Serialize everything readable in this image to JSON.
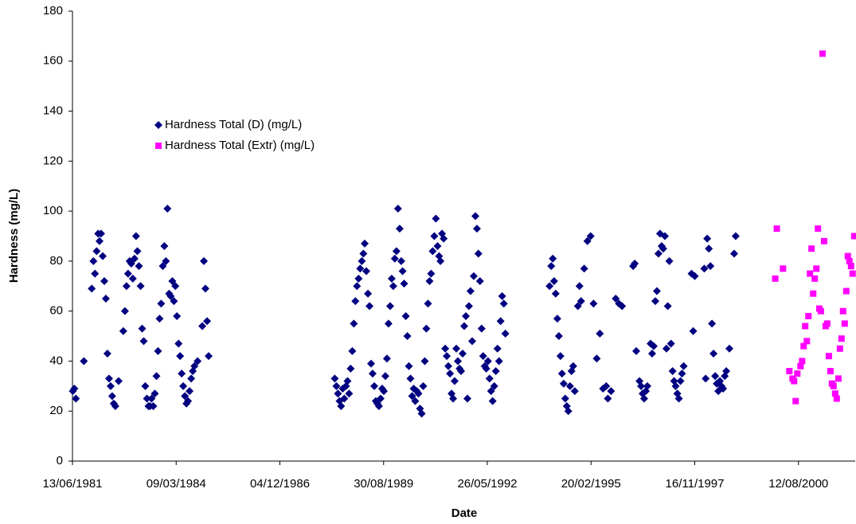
{
  "chart_data": {
    "type": "scatter",
    "x_label": "Date",
    "y_label": "Hardness (mg/L)",
    "xlim": [
      "13/06/1981",
      "10/02/2002"
    ],
    "xticks": [
      "13/06/1981",
      "09/03/1984",
      "04/12/1986",
      "30/08/1989",
      "26/05/1992",
      "20/02/1995",
      "16/11/1997",
      "12/08/2000"
    ],
    "ylim": [
      0,
      180
    ],
    "yticks": [
      0,
      20,
      40,
      60,
      80,
      100,
      120,
      140,
      160,
      180
    ],
    "grid": false,
    "legend": "upper left",
    "series": [
      {
        "name": "Hardness Total (D) (mg/L)",
        "color": "#000080",
        "marker": "diamond",
        "x": [
          "16/06/1981",
          "01/07/1981",
          "16/07/1981",
          "01/10/1981",
          "16/12/1981",
          "01/01/1982",
          "16/01/1982",
          "01/02/1982",
          "16/02/1982",
          "01/03/1982",
          "16/03/1982",
          "01/04/1982",
          "16/04/1982",
          "01/05/1982",
          "16/05/1982",
          "01/06/1982",
          "16/06/1982",
          "01/07/1982",
          "16/07/1982",
          "01/08/1982",
          "01/09/1982",
          "16/10/1982",
          "01/11/1982",
          "16/11/1982",
          "01/12/1982",
          "16/12/1982",
          "01/01/1983",
          "16/01/1983",
          "01/02/1983",
          "16/02/1983",
          "01/03/1983",
          "16/03/1983",
          "01/04/1983",
          "16/04/1983",
          "01/05/1983",
          "16/05/1983",
          "01/06/1983",
          "16/06/1983",
          "01/07/1983",
          "16/07/1983",
          "01/08/1983",
          "16/08/1983",
          "01/09/1983",
          "16/09/1983",
          "01/10/1983",
          "16/10/1983",
          "01/11/1983",
          "16/11/1983",
          "01/12/1983",
          "16/12/1983",
          "01/01/1984",
          "16/01/1984",
          "01/02/1984",
          "16/02/1984",
          "01/03/1984",
          "16/03/1984",
          "01/04/1984",
          "16/04/1984",
          "01/05/1984",
          "16/05/1984",
          "01/06/1984",
          "16/06/1984",
          "01/07/1984",
          "16/07/1984",
          "01/08/1984",
          "16/08/1984",
          "01/09/1984",
          "01/10/1984",
          "16/11/1984",
          "01/12/1984",
          "16/12/1984",
          "01/01/1985",
          "16/01/1985",
          "16/05/1988",
          "01/06/1988",
          "16/06/1988",
          "01/07/1988",
          "16/07/1988",
          "01/08/1988",
          "16/08/1988",
          "01/09/1988",
          "16/09/1988",
          "01/10/1988",
          "16/10/1988",
          "01/11/1988",
          "16/11/1988",
          "01/12/1988",
          "16/12/1988",
          "01/01/1989",
          "16/01/1989",
          "01/02/1989",
          "16/02/1989",
          "01/03/1989",
          "16/03/1989",
          "01/04/1989",
          "16/04/1989",
          "01/05/1989",
          "16/05/1989",
          "01/06/1989",
          "16/06/1989",
          "01/07/1989",
          "16/07/1989",
          "01/08/1989",
          "16/08/1989",
          "01/09/1989",
          "16/09/1989",
          "01/10/1989",
          "16/10/1989",
          "01/11/1989",
          "16/11/1989",
          "01/12/1989",
          "16/12/1989",
          "01/01/1990",
          "16/01/1990",
          "01/02/1990",
          "16/02/1990",
          "01/03/1990",
          "16/03/1990",
          "01/04/1990",
          "16/04/1990",
          "01/05/1990",
          "16/05/1990",
          "01/06/1990",
          "16/06/1990",
          "01/07/1990",
          "16/07/1990",
          "01/08/1990",
          "16/08/1990",
          "01/09/1990",
          "16/09/1990",
          "01/10/1990",
          "16/10/1990",
          "01/11/1990",
          "16/11/1990",
          "01/12/1990",
          "16/12/1990",
          "01/01/1991",
          "16/01/1991",
          "01/02/1991",
          "16/02/1991",
          "01/03/1991",
          "16/03/1991",
          "01/04/1991",
          "16/04/1991",
          "01/05/1991",
          "16/05/1991",
          "01/06/1991",
          "16/06/1991",
          "01/07/1991",
          "16/07/1991",
          "01/08/1991",
          "16/08/1991",
          "01/09/1991",
          "16/09/1991",
          "01/10/1991",
          "16/10/1991",
          "01/11/1991",
          "16/11/1991",
          "01/12/1991",
          "16/12/1991",
          "01/01/1992",
          "16/01/1992",
          "01/02/1992",
          "16/02/1992",
          "01/03/1992",
          "16/03/1992",
          "01/04/1992",
          "16/04/1992",
          "01/05/1992",
          "16/05/1992",
          "01/06/1992",
          "16/06/1992",
          "01/07/1992",
          "16/07/1992",
          "01/08/1992",
          "16/08/1992",
          "01/09/1992",
          "16/09/1992",
          "01/10/1992",
          "16/10/1992",
          "01/11/1992",
          "16/11/1992",
          "16/01/1994",
          "01/02/1994",
          "16/02/1994",
          "01/03/1994",
          "16/03/1994",
          "01/04/1994",
          "16/04/1994",
          "01/05/1994",
          "16/05/1994",
          "01/06/1994",
          "16/06/1994",
          "01/07/1994",
          "16/07/1994",
          "01/08/1994",
          "16/08/1994",
          "01/09/1994",
          "16/09/1994",
          "16/10/1994",
          "01/11/1994",
          "16/11/1994",
          "16/12/1994",
          "16/01/1995",
          "16/02/1995",
          "16/03/1995",
          "16/04/1995",
          "16/05/1995",
          "16/06/1995",
          "16/07/1995",
          "01/08/1995",
          "01/09/1995",
          "16/10/1995",
          "16/11/1995",
          "16/12/1995",
          "01/04/1996",
          "16/04/1996",
          "01/05/1996",
          "01/06/1996",
          "16/06/1996",
          "01/07/1996",
          "16/07/1996",
          "01/08/1996",
          "16/08/1996",
          "16/09/1996",
          "01/10/1996",
          "16/10/1996",
          "01/11/1996",
          "16/11/1996",
          "01/12/1996",
          "16/12/1996",
          "01/01/1997",
          "16/01/1997",
          "01/02/1997",
          "16/02/1997",
          "01/03/1997",
          "16/03/1997",
          "01/04/1997",
          "16/04/1997",
          "01/05/1997",
          "16/05/1997",
          "01/06/1997",
          "16/06/1997",
          "01/07/1997",
          "16/07/1997",
          "01/08/1997",
          "16/10/1997",
          "01/11/1997",
          "16/11/1997",
          "16/02/1998",
          "01/03/1998",
          "16/03/1998",
          "01/04/1998",
          "16/04/1998",
          "01/05/1998",
          "16/05/1998",
          "01/06/1998",
          "16/06/1998",
          "01/07/1998",
          "16/07/1998",
          "01/08/1998",
          "16/08/1998",
          "01/09/1998",
          "16/09/1998",
          "16/10/1998",
          "01/12/1998",
          "16/12/1998"
        ],
        "values": [
          28,
          29,
          25,
          40,
          69,
          80,
          75,
          84,
          91,
          88,
          91,
          82,
          72,
          65,
          43,
          33,
          30,
          26,
          23,
          22,
          32,
          52,
          60,
          70,
          75,
          80,
          79,
          73,
          81,
          90,
          84,
          78,
          70,
          53,
          48,
          30,
          25,
          22,
          22,
          25,
          22,
          27,
          34,
          44,
          57,
          63,
          78,
          86,
          80,
          101,
          67,
          66,
          72,
          64,
          70,
          58,
          47,
          42,
          35,
          30,
          26,
          23,
          24,
          28,
          33,
          36,
          38,
          40,
          54,
          80,
          69,
          56,
          42,
          33,
          30,
          27,
          24,
          22,
          29,
          25,
          30,
          32,
          27,
          37,
          44,
          55,
          64,
          70,
          73,
          77,
          80,
          83,
          87,
          76,
          67,
          62,
          39,
          35,
          30,
          24,
          23,
          22,
          25,
          29,
          28,
          34,
          41,
          55,
          62,
          73,
          70,
          81,
          84,
          101,
          93,
          80,
          76,
          71,
          58,
          50,
          38,
          33,
          26,
          29,
          24,
          28,
          27,
          21,
          19,
          30,
          40,
          53,
          63,
          72,
          75,
          84,
          90,
          97,
          86,
          82,
          80,
          91,
          89,
          45,
          42,
          38,
          35,
          27,
          25,
          32,
          45,
          40,
          37,
          36,
          43,
          54,
          58,
          25,
          62,
          68,
          48,
          74,
          98,
          93,
          83,
          72,
          53,
          42,
          38,
          37,
          40,
          33,
          28,
          24,
          30,
          36,
          45,
          40,
          56,
          66,
          63,
          51,
          70,
          78,
          81,
          72,
          67,
          57,
          50,
          42,
          35,
          31,
          25,
          22,
          20,
          30,
          36,
          38,
          28,
          62,
          70,
          64,
          77,
          88,
          90,
          63,
          41,
          51,
          29,
          30,
          25,
          28,
          65,
          63,
          62,
          78,
          79,
          44,
          32,
          30,
          27,
          25,
          28,
          30,
          47,
          43,
          46,
          64,
          68,
          83,
          91,
          86,
          85,
          90,
          45,
          62,
          80,
          47,
          36,
          32,
          30,
          27,
          25,
          32,
          35,
          38,
          75,
          52,
          74,
          77,
          33,
          89,
          85,
          78,
          55,
          43,
          34,
          31,
          28,
          32,
          30,
          29,
          34,
          36,
          45,
          83,
          90
        ]
      },
      {
        "name": "Hardness Total (Extr) (mg/L)",
        "color": "#ff00ff",
        "marker": "square",
        "x": [
          "01/01/2000",
          "16/01/2000",
          "16/03/2000",
          "16/05/2000",
          "16/06/2000",
          "01/07/2000",
          "16/07/2000",
          "01/08/2000",
          "01/09/2000",
          "16/09/2000",
          "01/10/2000",
          "16/10/2000",
          "01/11/2000",
          "16/11/2000",
          "01/12/2000",
          "16/12/2000",
          "01/01/2001",
          "16/01/2001",
          "01/02/2001",
          "16/02/2001",
          "01/03/2001",
          "16/03/2001",
          "01/04/2001",
          "16/04/2001",
          "01/05/2001",
          "16/05/2001",
          "01/06/2001",
          "16/06/2001",
          "01/07/2001",
          "16/07/2001",
          "01/08/2001",
          "16/08/2001",
          "01/09/2001",
          "16/09/2001",
          "01/10/2001",
          "16/10/2001",
          "01/11/2001",
          "16/11/2001",
          "01/12/2001",
          "16/12/2001",
          "01/01/2002",
          "16/01/2002",
          "01/02/2002"
        ],
        "values": [
          73,
          93,
          77,
          36,
          33,
          32,
          24,
          35,
          38,
          40,
          46,
          54,
          48,
          58,
          75,
          85,
          67,
          73,
          77,
          93,
          61,
          60,
          163,
          88,
          54,
          55,
          42,
          36,
          31,
          30,
          27,
          25,
          33,
          45,
          49,
          60,
          55,
          68,
          82,
          80,
          78,
          75,
          90
        ]
      }
    ]
  }
}
